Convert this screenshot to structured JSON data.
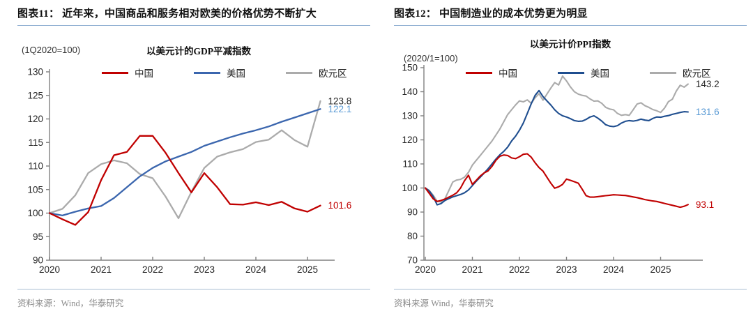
{
  "page": {
    "background": "#ffffff"
  },
  "panels": [
    {
      "header": "图表11：  近年来，中国商品和服务相对欧美的价格优势不断扩大",
      "unit_label": "(1Q2020=100)",
      "source": "资料来源：Wind，华泰研究",
      "chart_data": {
        "type": "line",
        "title": "以美元计的GDP平减指数",
        "frequency": "quarterly",
        "x": [
          2020,
          2020.25,
          2020.5,
          2020.75,
          2021,
          2021.25,
          2021.5,
          2021.75,
          2022,
          2022.25,
          2022.5,
          2022.75,
          2023,
          2023.25,
          2023.5,
          2023.75,
          2024,
          2024.25,
          2024.5,
          2024.75,
          2025,
          2025.25
        ],
        "xticks": [
          2020,
          2021,
          2022,
          2023,
          2024,
          2025
        ],
        "ylim": [
          90,
          130
        ],
        "ytick_step": 5,
        "grid": false,
        "legend_position": "top",
        "series": [
          {
            "name": "中国",
            "color": "#C00000",
            "label_color": "#C00000",
            "end_label": "101.6",
            "values": [
              100,
              98.7,
              97.5,
              100.2,
              107.0,
              112.3,
              113.0,
              116.4,
              116.4,
              112.8,
              108.5,
              104.4,
              108.5,
              105.5,
              101.9,
              101.8,
              102.3,
              101.7,
              102.4,
              101.0,
              100.3,
              101.6
            ]
          },
          {
            "name": "美国",
            "color": "#3B66AE",
            "label_color": "#5B9BD5",
            "end_label": "122.1",
            "values": [
              100,
              99.5,
              100.3,
              101.0,
              101.5,
              103.2,
              105.5,
              107.8,
              109.6,
              111.0,
              112.0,
              113.0,
              114.3,
              115.2,
              116.1,
              116.9,
              117.6,
              118.4,
              119.4,
              120.3,
              121.2,
              122.1
            ]
          },
          {
            "name": "欧元区",
            "color": "#ABABAB",
            "label_color": "#262626",
            "end_label": "123.8",
            "values": [
              100,
              100.9,
              103.8,
              108.5,
              110.4,
              111.2,
              110.6,
              108.3,
              107.4,
              103.5,
              98.9,
              104.5,
              109.6,
              112.0,
              112.9,
              113.6,
              115.1,
              115.6,
              117.6,
              115.5,
              114.1,
              123.8
            ]
          }
        ]
      }
    },
    {
      "header": "图表12：  中国制造业的成本优势更为明显",
      "unit_label": "(2020/1=100)",
      "source": "资料来源 Wind，华泰研究",
      "chart_data": {
        "type": "line",
        "title": "以美元计价PPI指数",
        "frequency": "monthly",
        "x_start": 2020,
        "xticks": [
          2020,
          2021,
          2022,
          2023,
          2024,
          2025
        ],
        "ylim": [
          70,
          150
        ],
        "ytick_step": 10,
        "grid": false,
        "legend_position": "top",
        "series": [
          {
            "name": "中国",
            "color": "#C00000",
            "label_color": "#C00000",
            "end_label": "93.1",
            "values": [
              100,
              97.8,
              95.5,
              94.4,
              94.8,
              95.4,
              96.2,
              97.0,
              98.0,
              100.0,
              103.0,
              105.3,
              101.5,
              103.2,
              105.0,
              106.3,
              107.1,
              109.0,
              111.5,
              113.2,
              113.7,
              113.5,
              112.5,
              112.2,
              113.0,
              114.0,
              114.2,
              112.8,
              110.5,
              108.5,
              107.0,
              104.5,
              102.0,
              99.9,
              100.5,
              101.5,
              103.7,
              103.2,
              102.6,
              102.0,
              99.5,
              96.8,
              96.2,
              96.2,
              96.4,
              96.6,
              96.8,
              97.0,
              97.2,
              97.1,
              97.0,
              96.9,
              96.6,
              96.3,
              96.0,
              95.6,
              95.2,
              94.9,
              94.6,
              94.4,
              94.0,
              93.6,
              93.2,
              92.8,
              92.4,
              92.0,
              92.4,
              93.1
            ]
          },
          {
            "name": "美国",
            "color": "#1F4E8F",
            "label_color": "#5B9BD5",
            "end_label": "131.6",
            "values": [
              100,
              98.8,
              96.5,
              93.0,
              93.5,
              94.8,
              95.6,
              96.3,
              96.8,
              97.3,
              98.0,
              99.2,
              101.0,
              102.8,
              104.5,
              106.2,
              108.0,
              110.0,
              112.0,
              113.8,
              115.2,
              117.0,
              119.5,
              121.5,
              124.0,
              127.0,
              131.0,
              135.0,
              138.5,
              140.5,
              138.0,
              136.2,
              134.5,
              132.5,
              131.0,
              130.0,
              129.5,
              128.8,
              128.0,
              127.7,
              127.8,
              128.5,
              129.5,
              130.0,
              129.0,
              127.8,
              126.3,
              125.7,
              125.5,
              125.9,
              127.0,
              127.7,
              128.0,
              127.8,
              128.1,
              128.6,
              128.2,
              128.0,
              128.9,
              129.5,
              129.4,
              129.8,
              130.1,
              130.6,
              131.0,
              131.4,
              131.7,
              131.6
            ]
          },
          {
            "name": "欧元区",
            "color": "#ABABAB",
            "label_color": "#262626",
            "end_label": "143.2",
            "values": [
              100,
              99.0,
              97.0,
              94.5,
              94.2,
              95.5,
              99.0,
              102.5,
              103.3,
              103.6,
              104.5,
              106.5,
              109.5,
              111.5,
              113.5,
              115.5,
              117.5,
              119.5,
              122.0,
              124.5,
              127.5,
              130.5,
              132.5,
              134.5,
              136.2,
              135.8,
              136.6,
              135.2,
              137.5,
              139.2,
              136.5,
              139.0,
              141.5,
              143.8,
              142.8,
              146.5,
              144.5,
              142.0,
              140.0,
              139.0,
              138.5,
              138.2,
              137.0,
              136.1,
              136.2,
              135.2,
              133.5,
              132.8,
              132.5,
              131.0,
              130.2,
              130.5,
              130.2,
              132.5,
              134.9,
              135.4,
              134.2,
              133.5,
              132.6,
              132.1,
              131.4,
              133.2,
              135.9,
              136.9,
              140.3,
              142.7,
              141.9,
              143.2
            ]
          }
        ]
      }
    }
  ]
}
